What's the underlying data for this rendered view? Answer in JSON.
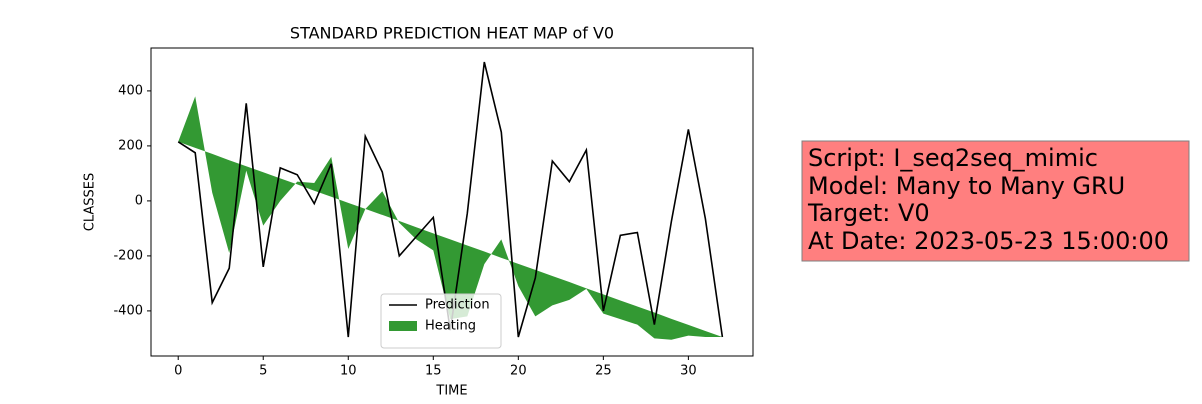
{
  "chart_data": {
    "type": "line",
    "title": "STANDARD PREDICTION HEAT MAP of V0",
    "xlabel": "TIME",
    "ylabel": "CLASSES",
    "x": [
      0,
      1,
      2,
      3,
      4,
      5,
      6,
      7,
      8,
      9,
      10,
      11,
      12,
      13,
      14,
      15,
      16,
      17,
      18,
      19,
      20,
      21,
      22,
      23,
      24,
      25,
      26,
      27,
      28,
      29,
      30,
      31,
      32
    ],
    "series": [
      {
        "name": "Prediction",
        "color": "#000000",
        "values": [
          215,
          175,
          -370,
          -245,
          355,
          -240,
          120,
          95,
          -10,
          135,
          -495,
          235,
          105,
          -200,
          -130,
          -60,
          -470,
          -45,
          505,
          250,
          -495,
          -280,
          145,
          70,
          185,
          -400,
          -125,
          -115,
          -450,
          -75,
          260,
          -65,
          -495
        ]
      },
      {
        "name": "Heating",
        "color": "#008000",
        "fill": true,
        "values": [
          215,
          380,
          30,
          -190,
          110,
          -90,
          0,
          70,
          65,
          160,
          -175,
          -30,
          35,
          -80,
          -140,
          -180,
          -430,
          -420,
          -230,
          -140,
          -310,
          -420,
          -380,
          -360,
          -320,
          -410,
          -430,
          -450,
          -500,
          -505,
          -490,
          -495,
          -495
        ],
        "lower": [
          215,
          193,
          171,
          148,
          126,
          104,
          82,
          60,
          37,
          15,
          -7,
          -29,
          -51,
          -73,
          -96,
          -118,
          -140,
          -162,
          -184,
          -207,
          -229,
          -251,
          -273,
          -295,
          -318,
          -340,
          -362,
          -384,
          -406,
          -429,
          -451,
          -473,
          -495
        ]
      }
    ],
    "xlim": [
      -1.6,
      33.8
    ],
    "ylim": [
      -564,
      556
    ],
    "xticks": [
      0,
      5,
      10,
      15,
      20,
      25,
      30
    ],
    "yticks": [
      -400,
      -200,
      0,
      200,
      400
    ],
    "legend": "lower center",
    "annotation": [
      "Script: I_seq2seq_mimic",
      "Model: Many to Many GRU",
      "Target: V0",
      "At Date: 2023-05-23 15:00:00"
    ]
  }
}
